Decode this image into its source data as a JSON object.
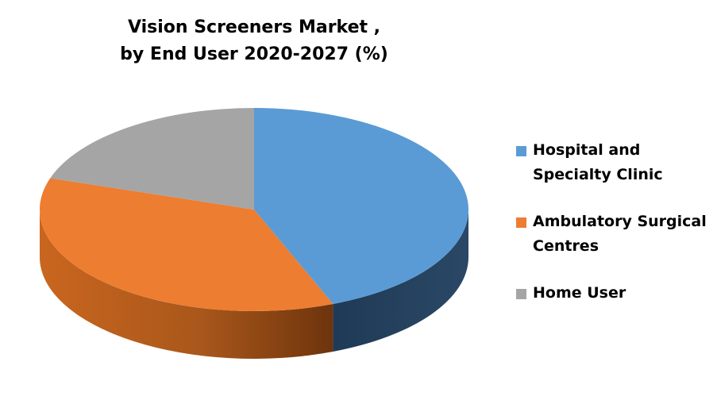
{
  "chart_data": {
    "type": "pie",
    "style": "3d",
    "title": "Vision Screeners Market ,",
    "subtitle": "by End User 2020-2027 (%)",
    "categories": [
      "Hospital and Specialty Clinic",
      "Ambulatory Surgical Centres",
      "Home User"
    ],
    "values": [
      44,
      36,
      20
    ],
    "colors": [
      "#5b9bd5",
      "#ed7d31",
      "#a5a5a5"
    ],
    "side_colors": [
      "#25405c",
      "#8a4412",
      "#6b6b6b"
    ],
    "legend": {
      "position": "right",
      "entries": [
        {
          "label": "Hospital and Specialty Clinic",
          "line1": "Hospital and",
          "line2": "Specialty Clinic",
          "color": "#5b9bd5"
        },
        {
          "label": "Ambulatory Surgical Centres",
          "line1": "Ambulatory Surgical",
          "line2": "Centres",
          "color": "#ed7d31"
        },
        {
          "label": "Home User",
          "line1": "Home User",
          "line2": "",
          "color": "#a5a5a5"
        }
      ]
    }
  }
}
